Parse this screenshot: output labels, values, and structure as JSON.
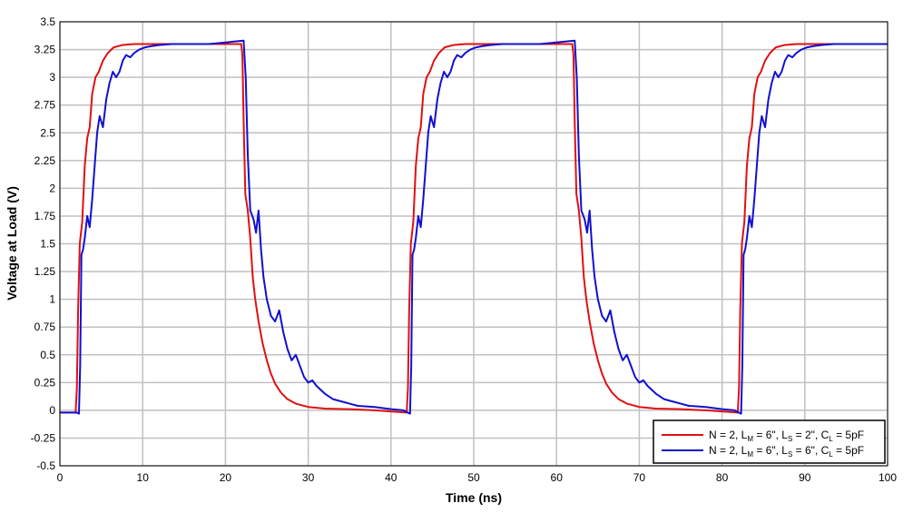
{
  "chart_data": {
    "type": "line",
    "xlabel": "Time (ns)",
    "ylabel": "Voltage at Load (V)",
    "xlim": [
      0,
      100
    ],
    "ylim": [
      -0.5,
      3.5
    ],
    "x_ticks": [
      "0",
      "10",
      "20",
      "30",
      "40",
      "50",
      "60",
      "70",
      "80",
      "90",
      "100"
    ],
    "y_ticks": [
      "-0.5",
      "-0.25",
      "0",
      "0.25",
      "0.5",
      "0.75",
      "1",
      "1.25",
      "1.5",
      "1.75",
      "2",
      "2.25",
      "2.5",
      "2.75",
      "3",
      "3.25",
      "3.5"
    ],
    "grid": true,
    "legend_position": "bottom-right",
    "series": [
      {
        "name_parts": {
          "a": "N = 2, L",
          "b": "M",
          "c": " = 6\", L",
          "d": "S",
          "e": " = 2\", C",
          "f": "L",
          "g": " = 5pF"
        },
        "color": "#e01010",
        "x": [
          0,
          1.9,
          2.05,
          2.2,
          2.4,
          2.7,
          3.0,
          3.3,
          3.6,
          3.9,
          4.3,
          4.7,
          5.2,
          5.8,
          6.5,
          7.5,
          9,
          11,
          14,
          18,
          21.9,
          22.05,
          22.2,
          22.4,
          22.7,
          23.0,
          23.3,
          23.6,
          24.0,
          24.5,
          25.0,
          25.5,
          26.0,
          26.7,
          27.5,
          28.5,
          30,
          32,
          35,
          38,
          41.9,
          42.05,
          42.2,
          42.4,
          42.7,
          43.0,
          43.3,
          43.6,
          43.9,
          44.3,
          44.7,
          45.2,
          45.8,
          46.5,
          47.5,
          49,
          51,
          54,
          58,
          61.9,
          62.05,
          62.2,
          62.4,
          62.7,
          63.0,
          63.3,
          63.6,
          64.0,
          64.5,
          65.0,
          65.5,
          66.0,
          66.7,
          67.5,
          68.5,
          70,
          72,
          75,
          78,
          81.9,
          82.05,
          82.2,
          82.4,
          82.7,
          83.0,
          83.3,
          83.6,
          83.9,
          84.3,
          84.7,
          85.2,
          85.8,
          86.5,
          87.5,
          89,
          91,
          94,
          100
        ],
        "y": [
          -0.02,
          -0.02,
          0.2,
          0.9,
          1.5,
          1.7,
          2.2,
          2.45,
          2.55,
          2.85,
          3.0,
          3.05,
          3.15,
          3.22,
          3.27,
          3.29,
          3.3,
          3.3,
          3.3,
          3.3,
          3.3,
          3.2,
          2.6,
          1.95,
          1.8,
          1.55,
          1.2,
          1.0,
          0.8,
          0.6,
          0.45,
          0.33,
          0.24,
          0.16,
          0.1,
          0.06,
          0.03,
          0.015,
          0.01,
          0.0,
          -0.02,
          0.2,
          0.9,
          1.5,
          1.7,
          2.2,
          2.45,
          2.55,
          2.85,
          3.0,
          3.05,
          3.15,
          3.22,
          3.27,
          3.29,
          3.3,
          3.3,
          3.3,
          3.3,
          3.3,
          3.2,
          2.6,
          1.95,
          1.8,
          1.55,
          1.2,
          1.0,
          0.8,
          0.6,
          0.45,
          0.33,
          0.24,
          0.16,
          0.1,
          0.06,
          0.03,
          0.015,
          0.01,
          0.0,
          -0.02,
          0.2,
          0.9,
          1.5,
          1.7,
          2.2,
          2.45,
          2.55,
          2.85,
          3.0,
          3.05,
          3.15,
          3.22,
          3.27,
          3.29,
          3.3,
          3.3,
          3.3,
          3.3
        ]
      },
      {
        "name_parts": {
          "a": "N = 2, L",
          "b": "M",
          "c": " = 6\", L",
          "d": "S",
          "e": " = 6\", C",
          "f": "L",
          "g": " = 5pF"
        },
        "color": "#1010d0",
        "x": [
          0,
          2.0,
          2.3,
          2.45,
          2.6,
          2.8,
          3.0,
          3.3,
          3.6,
          3.9,
          4.2,
          4.5,
          4.8,
          5.2,
          5.6,
          6.0,
          6.4,
          6.8,
          7.2,
          7.6,
          8.0,
          8.5,
          9.0,
          9.6,
          10.3,
          11,
          12,
          13.5,
          15,
          18,
          22.2,
          22.45,
          22.7,
          23.0,
          23.4,
          23.7,
          24.0,
          24.3,
          24.6,
          25.0,
          25.5,
          26.0,
          26.5,
          27.0,
          27.5,
          28.0,
          28.5,
          29.0,
          29.5,
          30.0,
          30.5,
          31.0,
          32.0,
          33.0,
          34.0,
          35.0,
          36.0,
          38.0,
          40.0,
          41.5,
          42.0,
          42.3,
          42.45,
          42.6,
          42.8,
          43.0,
          43.3,
          43.6,
          43.9,
          44.2,
          44.5,
          44.8,
          45.2,
          45.6,
          46.0,
          46.4,
          46.8,
          47.2,
          47.6,
          48.0,
          48.5,
          49.0,
          49.6,
          50.3,
          51,
          52,
          53.5,
          55,
          58,
          62.2,
          62.45,
          62.7,
          63.0,
          63.4,
          63.7,
          64.0,
          64.3,
          64.6,
          65.0,
          65.5,
          66.0,
          66.5,
          67.0,
          67.5,
          68.0,
          68.5,
          69.0,
          69.5,
          70.0,
          70.5,
          71.0,
          72.0,
          73.0,
          74.0,
          75.0,
          76.0,
          78.0,
          80.0,
          81.5,
          82.0,
          82.3,
          82.45,
          82.6,
          82.8,
          83.0,
          83.3,
          83.6,
          83.9,
          84.2,
          84.5,
          84.8,
          85.2,
          85.6,
          86.0,
          86.4,
          86.8,
          87.2,
          87.6,
          88.0,
          88.5,
          89.0,
          89.6,
          90.3,
          91,
          92,
          93.5,
          95,
          100
        ],
        "y": [
          -0.02,
          -0.02,
          -0.03,
          0.4,
          1.4,
          1.45,
          1.55,
          1.75,
          1.65,
          1.9,
          2.2,
          2.5,
          2.65,
          2.55,
          2.8,
          2.95,
          3.05,
          3.0,
          3.05,
          3.15,
          3.2,
          3.18,
          3.22,
          3.25,
          3.27,
          3.28,
          3.29,
          3.3,
          3.3,
          3.3,
          3.33,
          3.0,
          2.3,
          1.8,
          1.72,
          1.6,
          1.8,
          1.45,
          1.2,
          1.0,
          0.85,
          0.8,
          0.9,
          0.7,
          0.55,
          0.45,
          0.5,
          0.4,
          0.3,
          0.25,
          0.27,
          0.22,
          0.15,
          0.1,
          0.08,
          0.06,
          0.04,
          0.03,
          0.01,
          0.0,
          -0.02,
          -0.03,
          0.4,
          1.4,
          1.45,
          1.55,
          1.75,
          1.65,
          1.9,
          2.2,
          2.5,
          2.65,
          2.55,
          2.8,
          2.95,
          3.05,
          3.0,
          3.05,
          3.15,
          3.2,
          3.18,
          3.22,
          3.25,
          3.27,
          3.28,
          3.29,
          3.3,
          3.3,
          3.3,
          3.33,
          3.0,
          2.3,
          1.8,
          1.72,
          1.6,
          1.8,
          1.45,
          1.2,
          1.0,
          0.85,
          0.8,
          0.9,
          0.7,
          0.55,
          0.45,
          0.5,
          0.4,
          0.3,
          0.25,
          0.27,
          0.22,
          0.15,
          0.1,
          0.08,
          0.06,
          0.04,
          0.03,
          0.01,
          0.0,
          -0.02,
          -0.03,
          0.4,
          1.4,
          1.45,
          1.55,
          1.75,
          1.65,
          1.9,
          2.2,
          2.5,
          2.65,
          2.55,
          2.8,
          2.95,
          3.05,
          3.0,
          3.05,
          3.15,
          3.2,
          3.18,
          3.22,
          3.25,
          3.27,
          3.28,
          3.29,
          3.3,
          3.3,
          3.3
        ]
      }
    ]
  }
}
